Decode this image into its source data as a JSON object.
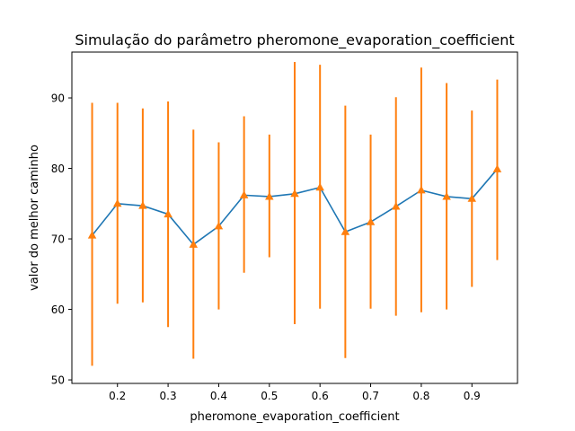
{
  "chart_data": {
    "type": "line",
    "title": "Simulação do parâmetro pheromone_evaporation_coefficient",
    "xlabel": "pheromone_evaporation_coefficient",
    "ylabel": "valor do melhor caminho",
    "xlim": [
      0.11,
      0.99
    ],
    "ylim": [
      49.5,
      96.5
    ],
    "x_ticks": [
      0.2,
      0.3,
      0.4,
      0.5,
      0.6,
      0.7,
      0.8,
      0.9
    ],
    "x_tick_labels": [
      "0.2",
      "0.3",
      "0.4",
      "0.5",
      "0.6",
      "0.7",
      "0.8",
      "0.9"
    ],
    "y_ticks": [
      50,
      60,
      70,
      80,
      90
    ],
    "y_tick_labels": [
      "50",
      "60",
      "70",
      "80",
      "90"
    ],
    "grid": false,
    "colors": {
      "line": "#1f77b4",
      "error": "#ff7f0e",
      "marker": "#ff7f0e"
    },
    "series": [
      {
        "x": [
          0.15,
          0.2,
          0.25,
          0.3,
          0.35,
          0.4,
          0.45,
          0.5,
          0.55,
          0.6,
          0.65,
          0.7,
          0.75,
          0.8,
          0.85,
          0.9,
          0.95
        ],
        "y": [
          70.5,
          75.0,
          74.7,
          73.5,
          69.2,
          71.8,
          76.2,
          76.0,
          76.4,
          77.3,
          71.0,
          72.4,
          74.6,
          76.9,
          76.0,
          75.7,
          79.9
        ],
        "y_low": [
          52.0,
          60.8,
          61.0,
          57.5,
          53.0,
          60.0,
          65.2,
          67.4,
          57.9,
          60.1,
          53.1,
          60.1,
          59.1,
          59.6,
          60.0,
          63.2,
          67.0
        ],
        "y_high": [
          89.3,
          89.3,
          88.5,
          89.5,
          85.5,
          83.7,
          87.4,
          84.8,
          95.1,
          94.7,
          88.9,
          84.8,
          90.1,
          94.3,
          92.1,
          88.2,
          92.6
        ]
      }
    ]
  }
}
